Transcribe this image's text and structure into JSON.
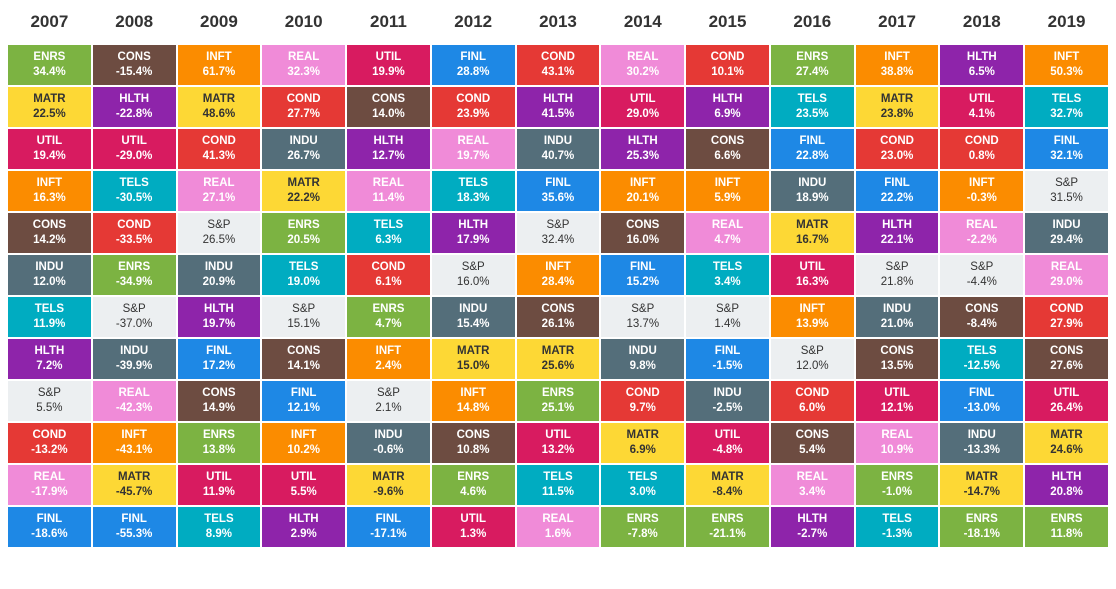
{
  "chart_data": {
    "type": "table",
    "years": [
      "2007",
      "2008",
      "2009",
      "2010",
      "2011",
      "2012",
      "2013",
      "2014",
      "2015",
      "2016",
      "2017",
      "2018",
      "2019"
    ],
    "colors": {
      "ENRS": "#7cb342",
      "CONS": "#6d4c41",
      "INFT": "#fb8c00",
      "REAL": "#f08bd8",
      "UTIL": "#d81b60",
      "FINL": "#1e88e5",
      "COND": "#e53935",
      "HLTH": "#8e24aa",
      "MATR": "#fdd835",
      "TELS": "#00acc1",
      "INDU": "#546e7a",
      "S&P": "#eceff1"
    },
    "columns": [
      [
        [
          "ENRS",
          "34.4%"
        ],
        [
          "MATR",
          "22.5%"
        ],
        [
          "UTIL",
          "19.4%"
        ],
        [
          "INFT",
          "16.3%"
        ],
        [
          "CONS",
          "14.2%"
        ],
        [
          "INDU",
          "12.0%"
        ],
        [
          "TELS",
          "11.9%"
        ],
        [
          "HLTH",
          "7.2%"
        ],
        [
          "S&P",
          "5.5%"
        ],
        [
          "COND",
          "-13.2%"
        ],
        [
          "REAL",
          "-17.9%"
        ],
        [
          "FINL",
          "-18.6%"
        ]
      ],
      [
        [
          "CONS",
          "-15.4%"
        ],
        [
          "HLTH",
          "-22.8%"
        ],
        [
          "UTIL",
          "-29.0%"
        ],
        [
          "TELS",
          "-30.5%"
        ],
        [
          "COND",
          "-33.5%"
        ],
        [
          "ENRS",
          "-34.9%"
        ],
        [
          "S&P",
          "-37.0%"
        ],
        [
          "INDU",
          "-39.9%"
        ],
        [
          "REAL",
          "-42.3%"
        ],
        [
          "INFT",
          "-43.1%"
        ],
        [
          "MATR",
          "-45.7%"
        ],
        [
          "FINL",
          "-55.3%"
        ]
      ],
      [
        [
          "INFT",
          "61.7%"
        ],
        [
          "MATR",
          "48.6%"
        ],
        [
          "COND",
          "41.3%"
        ],
        [
          "REAL",
          "27.1%"
        ],
        [
          "S&P",
          "26.5%"
        ],
        [
          "INDU",
          "20.9%"
        ],
        [
          "HLTH",
          "19.7%"
        ],
        [
          "FINL",
          "17.2%"
        ],
        [
          "CONS",
          "14.9%"
        ],
        [
          "ENRS",
          "13.8%"
        ],
        [
          "UTIL",
          "11.9%"
        ],
        [
          "TELS",
          "8.9%"
        ]
      ],
      [
        [
          "REAL",
          "32.3%"
        ],
        [
          "COND",
          "27.7%"
        ],
        [
          "INDU",
          "26.7%"
        ],
        [
          "MATR",
          "22.2%"
        ],
        [
          "ENRS",
          "20.5%"
        ],
        [
          "TELS",
          "19.0%"
        ],
        [
          "S&P",
          "15.1%"
        ],
        [
          "CONS",
          "14.1%"
        ],
        [
          "FINL",
          "12.1%"
        ],
        [
          "INFT",
          "10.2%"
        ],
        [
          "UTIL",
          "5.5%"
        ],
        [
          "HLTH",
          "2.9%"
        ]
      ],
      [
        [
          "UTIL",
          "19.9%"
        ],
        [
          "CONS",
          "14.0%"
        ],
        [
          "HLTH",
          "12.7%"
        ],
        [
          "REAL",
          "11.4%"
        ],
        [
          "TELS",
          "6.3%"
        ],
        [
          "COND",
          "6.1%"
        ],
        [
          "ENRS",
          "4.7%"
        ],
        [
          "INFT",
          "2.4%"
        ],
        [
          "S&P",
          "2.1%"
        ],
        [
          "INDU",
          "-0.6%"
        ],
        [
          "MATR",
          "-9.6%"
        ],
        [
          "FINL",
          "-17.1%"
        ]
      ],
      [
        [
          "FINL",
          "28.8%"
        ],
        [
          "COND",
          "23.9%"
        ],
        [
          "REAL",
          "19.7%"
        ],
        [
          "TELS",
          "18.3%"
        ],
        [
          "HLTH",
          "17.9%"
        ],
        [
          "S&P",
          "16.0%"
        ],
        [
          "INDU",
          "15.4%"
        ],
        [
          "MATR",
          "15.0%"
        ],
        [
          "INFT",
          "14.8%"
        ],
        [
          "CONS",
          "10.8%"
        ],
        [
          "ENRS",
          "4.6%"
        ],
        [
          "UTIL",
          "1.3%"
        ]
      ],
      [
        [
          "COND",
          "43.1%"
        ],
        [
          "HLTH",
          "41.5%"
        ],
        [
          "INDU",
          "40.7%"
        ],
        [
          "FINL",
          "35.6%"
        ],
        [
          "S&P",
          "32.4%"
        ],
        [
          "INFT",
          "28.4%"
        ],
        [
          "CONS",
          "26.1%"
        ],
        [
          "MATR",
          "25.6%"
        ],
        [
          "ENRS",
          "25.1%"
        ],
        [
          "UTIL",
          "13.2%"
        ],
        [
          "TELS",
          "11.5%"
        ],
        [
          "REAL",
          "1.6%"
        ]
      ],
      [
        [
          "REAL",
          "30.2%"
        ],
        [
          "UTIL",
          "29.0%"
        ],
        [
          "HLTH",
          "25.3%"
        ],
        [
          "INFT",
          "20.1%"
        ],
        [
          "CONS",
          "16.0%"
        ],
        [
          "FINL",
          "15.2%"
        ],
        [
          "S&P",
          "13.7%"
        ],
        [
          "INDU",
          "9.8%"
        ],
        [
          "COND",
          "9.7%"
        ],
        [
          "MATR",
          "6.9%"
        ],
        [
          "TELS",
          "3.0%"
        ],
        [
          "ENRS",
          "-7.8%"
        ]
      ],
      [
        [
          "COND",
          "10.1%"
        ],
        [
          "HLTH",
          "6.9%"
        ],
        [
          "CONS",
          "6.6%"
        ],
        [
          "INFT",
          "5.9%"
        ],
        [
          "REAL",
          "4.7%"
        ],
        [
          "TELS",
          "3.4%"
        ],
        [
          "S&P",
          "1.4%"
        ],
        [
          "FINL",
          "-1.5%"
        ],
        [
          "INDU",
          "-2.5%"
        ],
        [
          "UTIL",
          "-4.8%"
        ],
        [
          "MATR",
          "-8.4%"
        ],
        [
          "ENRS",
          "-21.1%"
        ]
      ],
      [
        [
          "ENRS",
          "27.4%"
        ],
        [
          "TELS",
          "23.5%"
        ],
        [
          "FINL",
          "22.8%"
        ],
        [
          "INDU",
          "18.9%"
        ],
        [
          "MATR",
          "16.7%"
        ],
        [
          "UTIL",
          "16.3%"
        ],
        [
          "INFT",
          "13.9%"
        ],
        [
          "S&P",
          "12.0%"
        ],
        [
          "COND",
          "6.0%"
        ],
        [
          "CONS",
          "5.4%"
        ],
        [
          "REAL",
          "3.4%"
        ],
        [
          "HLTH",
          "-2.7%"
        ]
      ],
      [
        [
          "INFT",
          "38.8%"
        ],
        [
          "MATR",
          "23.8%"
        ],
        [
          "COND",
          "23.0%"
        ],
        [
          "FINL",
          "22.2%"
        ],
        [
          "HLTH",
          "22.1%"
        ],
        [
          "S&P",
          "21.8%"
        ],
        [
          "INDU",
          "21.0%"
        ],
        [
          "CONS",
          "13.5%"
        ],
        [
          "UTIL",
          "12.1%"
        ],
        [
          "REAL",
          "10.9%"
        ],
        [
          "ENRS",
          "-1.0%"
        ],
        [
          "TELS",
          "-1.3%"
        ]
      ],
      [
        [
          "HLTH",
          "6.5%"
        ],
        [
          "UTIL",
          "4.1%"
        ],
        [
          "COND",
          "0.8%"
        ],
        [
          "INFT",
          "-0.3%"
        ],
        [
          "REAL",
          "-2.2%"
        ],
        [
          "S&P",
          "-4.4%"
        ],
        [
          "CONS",
          "-8.4%"
        ],
        [
          "TELS",
          "-12.5%"
        ],
        [
          "FINL",
          "-13.0%"
        ],
        [
          "INDU",
          "-13.3%"
        ],
        [
          "MATR",
          "-14.7%"
        ],
        [
          "ENRS",
          "-18.1%"
        ]
      ],
      [
        [
          "INFT",
          "50.3%"
        ],
        [
          "TELS",
          "32.7%"
        ],
        [
          "FINL",
          "32.1%"
        ],
        [
          "S&P",
          "31.5%"
        ],
        [
          "INDU",
          "29.4%"
        ],
        [
          "REAL",
          "29.0%"
        ],
        [
          "COND",
          "27.9%"
        ],
        [
          "CONS",
          "27.6%"
        ],
        [
          "UTIL",
          "26.4%"
        ],
        [
          "MATR",
          "24.6%"
        ],
        [
          "HLTH",
          "20.8%"
        ],
        [
          "ENRS",
          "11.8%"
        ]
      ]
    ]
  }
}
